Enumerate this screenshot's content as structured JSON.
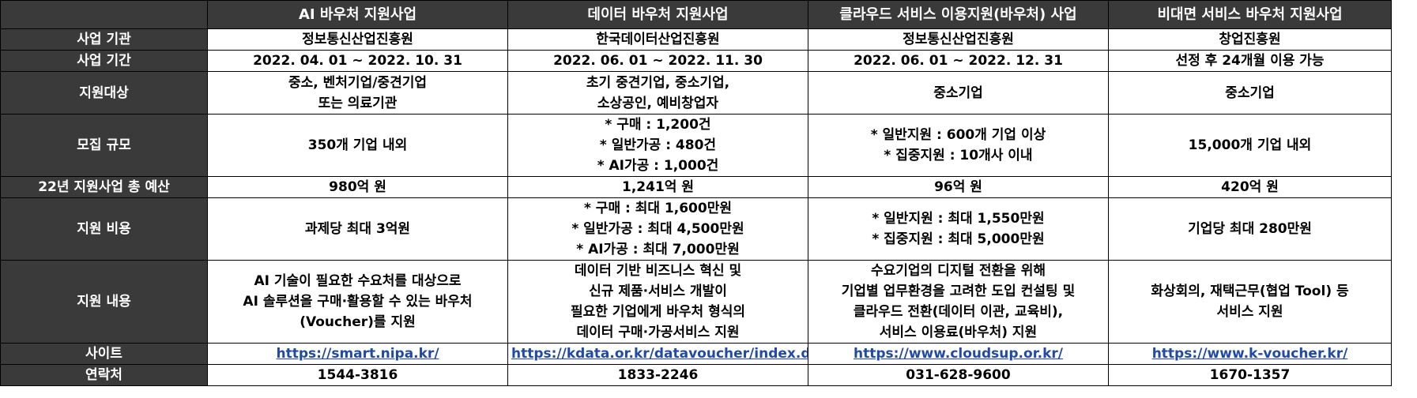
{
  "columns": [
    "AI 바우처 지원사업",
    "데이터 바우처 지원사업",
    "클라우드 서비스 이용지원(바우처) 사업",
    "비대면 서비스 바우처 지원사업"
  ],
  "rows": [
    {
      "header": "사업 기관",
      "cells": [
        [
          "정보통신산업진흥원"
        ],
        [
          "한국데이터산업진흥원"
        ],
        [
          "정보통신산업진흥원"
        ],
        [
          "창업진흥원"
        ]
      ]
    },
    {
      "header": "사업 기간",
      "cells": [
        [
          "2022. 04. 01 ~ 2022. 10. 31"
        ],
        [
          "2022. 06. 01 ~ 2022. 11. 30"
        ],
        [
          "2022. 06. 01 ~ 2022. 12. 31"
        ],
        [
          "선정 후 24개월 이용 가능"
        ]
      ]
    },
    {
      "header": "지원대상",
      "cells": [
        [
          "중소, 벤처기업/중견기업",
          "또는 의료기관"
        ],
        [
          "초기 중견기업, 중소기업,",
          "소상공인, 예비창업자"
        ],
        [
          "중소기업"
        ],
        [
          "중소기업"
        ]
      ]
    },
    {
      "header": "모집 규모",
      "cells": [
        [
          "350개 기업 내외"
        ],
        [
          "* 구매 : 1,200건",
          "* 일반가공 : 480건",
          "* AI가공 : 1,000건"
        ],
        [
          "* 일반지원 : 600개 기업 이상",
          "* 집중지원 : 10개사 이내"
        ],
        [
          "15,000개 기업 내외"
        ]
      ]
    },
    {
      "header": "22년 지원사업 총 예산",
      "cells": [
        [
          "980억 원"
        ],
        [
          "1,241억 원"
        ],
        [
          "96억 원"
        ],
        [
          "420억 원"
        ]
      ]
    },
    {
      "header": "지원 비용",
      "cells": [
        [
          "과제당 최대 3억원"
        ],
        [
          "* 구매 : 최대 1,600만원",
          "* 일반가공 : 최대 4,500만원",
          "* AI가공 : 최대 7,000만원"
        ],
        [
          "* 일반지원 : 최대 1,550만원",
          "* 집중지원 : 최대 5,000만원"
        ],
        [
          "기업당 최대 280만원"
        ]
      ]
    },
    {
      "header": "지원 내용",
      "cells": [
        [
          "AI 기술이 필요한 수요처를 대상으로",
          "AI 솔루션을 구매·활용할 수 있는 바우처",
          "(Voucher)를 지원"
        ],
        [
          "데이터 기반 비즈니스 혁신 및",
          "신규 제품·서비스 개발이",
          "필요한 기업에게 바우처 형식의",
          "데이터 구매·가공서비스 지원"
        ],
        [
          "수요기업의 디지털 전환을 위해",
          "기업별 업무환경을 고려한 도입 컨설팅 및",
          "클라우드 전환(데이터 이관, 교육비),",
          "서비스 이용료(바우처) 지원"
        ],
        [
          "화상회의, 재택근무(협업 Tool) 등",
          "서비스 지원"
        ]
      ]
    }
  ],
  "site_row": {
    "header": "사이트",
    "links": [
      "https://smart.nipa.kr/",
      "https://kdata.or.kr/datavoucher/index.do",
      "https://www.cloudsup.or.kr/",
      "https://www.k-voucher.kr/"
    ]
  },
  "contact_row": {
    "header": "연락처",
    "values": [
      "1544-3816",
      "1833-2246",
      "031-628-9600",
      "1670-1357"
    ]
  },
  "colors": {
    "header_bg": "#3a3a3a",
    "header_text": "#ffffff",
    "link": "#1f4aa8",
    "border": "#000000"
  }
}
